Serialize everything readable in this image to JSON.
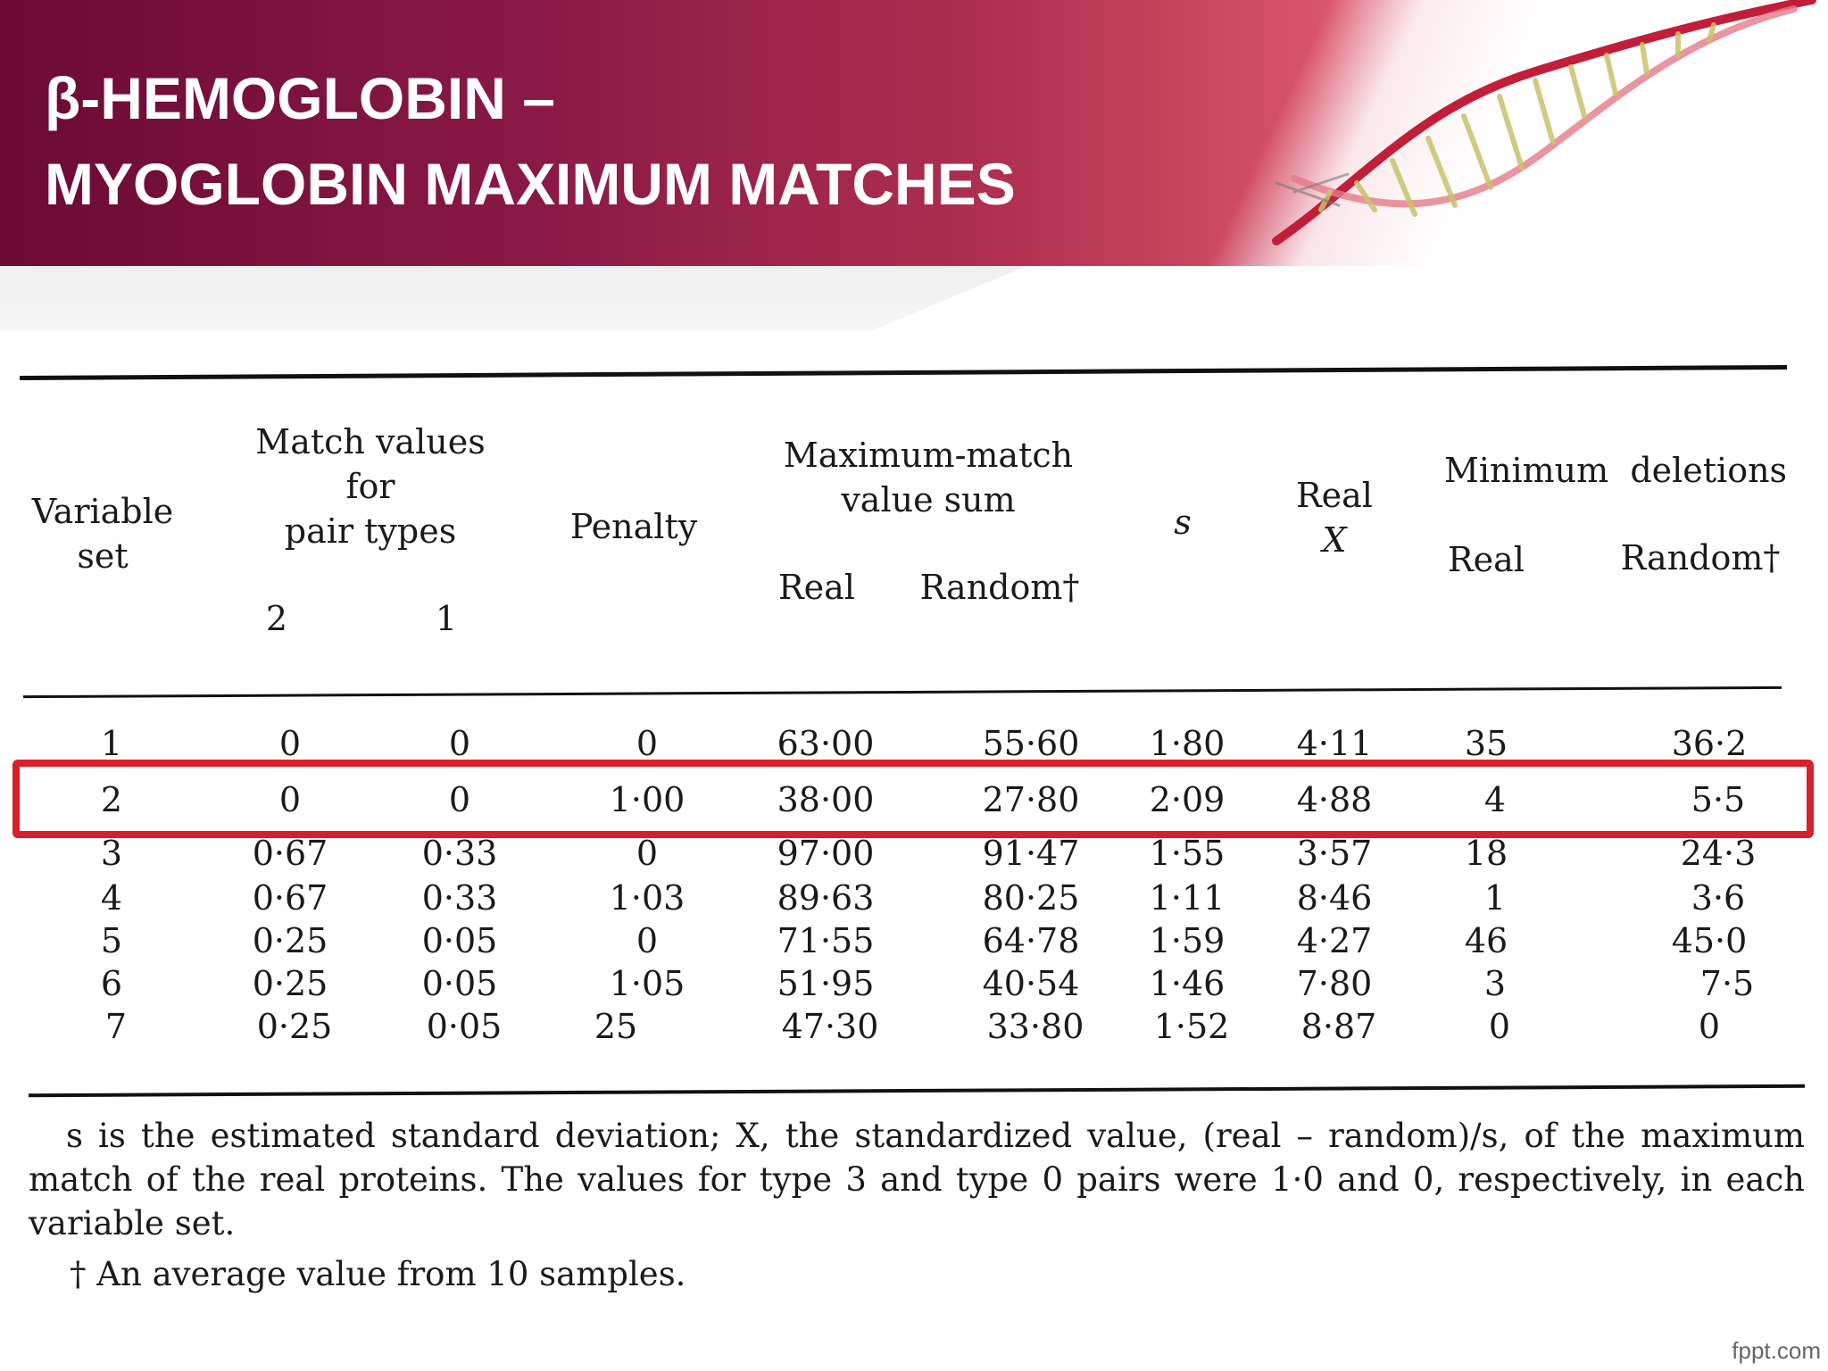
{
  "header": {
    "title_line1": "β-HEMOGLOBIN –",
    "title_line2": "MYOGLOBIN MAXIMUM MATCHES",
    "decoration_icon": "dna-helix-icon"
  },
  "table": {
    "headers": {
      "variable_set": [
        "Variable",
        "set"
      ],
      "match_values": [
        "Match values",
        "for",
        "pair types"
      ],
      "match_sub": [
        "2",
        "1"
      ],
      "penalty": "Penalty",
      "max_match": [
        "Maximum-match",
        "value sum"
      ],
      "max_match_sub": [
        "Real",
        "Random†"
      ],
      "s": "s",
      "real_x": [
        "Real",
        "X"
      ],
      "min_deletions": "Minimum  deletions",
      "min_deletions_sub": [
        "Real",
        "Random†"
      ]
    },
    "rows": [
      {
        "set": "1",
        "v2": "0",
        "v1": "0",
        "penalty": "0",
        "mm_real": "63·00",
        "mm_random": "55·60",
        "s": "1·80",
        "x": "4·11",
        "del_real": "35",
        "del_random": "36·2"
      },
      {
        "set": "2",
        "v2": "0",
        "v1": "0",
        "penalty": "1·00",
        "mm_real": "38·00",
        "mm_random": "27·80",
        "s": "2·09",
        "x": "4·88",
        "del_real": "4",
        "del_random": "5·5"
      },
      {
        "set": "3",
        "v2": "0·67",
        "v1": "0·33",
        "penalty": "0",
        "mm_real": "97·00",
        "mm_random": "91·47",
        "s": "1·55",
        "x": "3·57",
        "del_real": "18",
        "del_random": "24·3"
      },
      {
        "set": "4",
        "v2": "0·67",
        "v1": "0·33",
        "penalty": "1·03",
        "mm_real": "89·63",
        "mm_random": "80·25",
        "s": "1·11",
        "x": "8·46",
        "del_real": "1",
        "del_random": "3·6"
      },
      {
        "set": "5",
        "v2": "0·25",
        "v1": "0·05",
        "penalty": "0",
        "mm_real": "71·55",
        "mm_random": "64·78",
        "s": "1·59",
        "x": "4·27",
        "del_real": "46",
        "del_random": "45·0"
      },
      {
        "set": "6",
        "v2": "0·25",
        "v1": "0·05",
        "penalty": "1·05",
        "mm_real": "51·95",
        "mm_random": "40·54",
        "s": "1·46",
        "x": "7·80",
        "del_real": "3",
        "del_random": "7·5"
      },
      {
        "set": "7",
        "v2": "0·25",
        "v1": "0·05",
        "penalty": "25",
        "mm_real": "47·30",
        "mm_random": "33·80",
        "s": "1·52",
        "x": "8·87",
        "del_real": "0",
        "del_random": "0"
      }
    ],
    "highlighted_row": "2"
  },
  "footnote": {
    "text": "s is the estimated standard deviation; X, the standardized value, (real – random)/s, of the maximum match of the real proteins. The values for type 3 and type 0 pairs were 1·0 and 0, respectively, in each variable set.",
    "dagger": "† An average value from 10 samples."
  },
  "watermark": "fppt.com",
  "colors": {
    "banner_dark": "#6b0a35",
    "banner_light": "#d9546a",
    "highlight_border": "#d81f2a"
  }
}
